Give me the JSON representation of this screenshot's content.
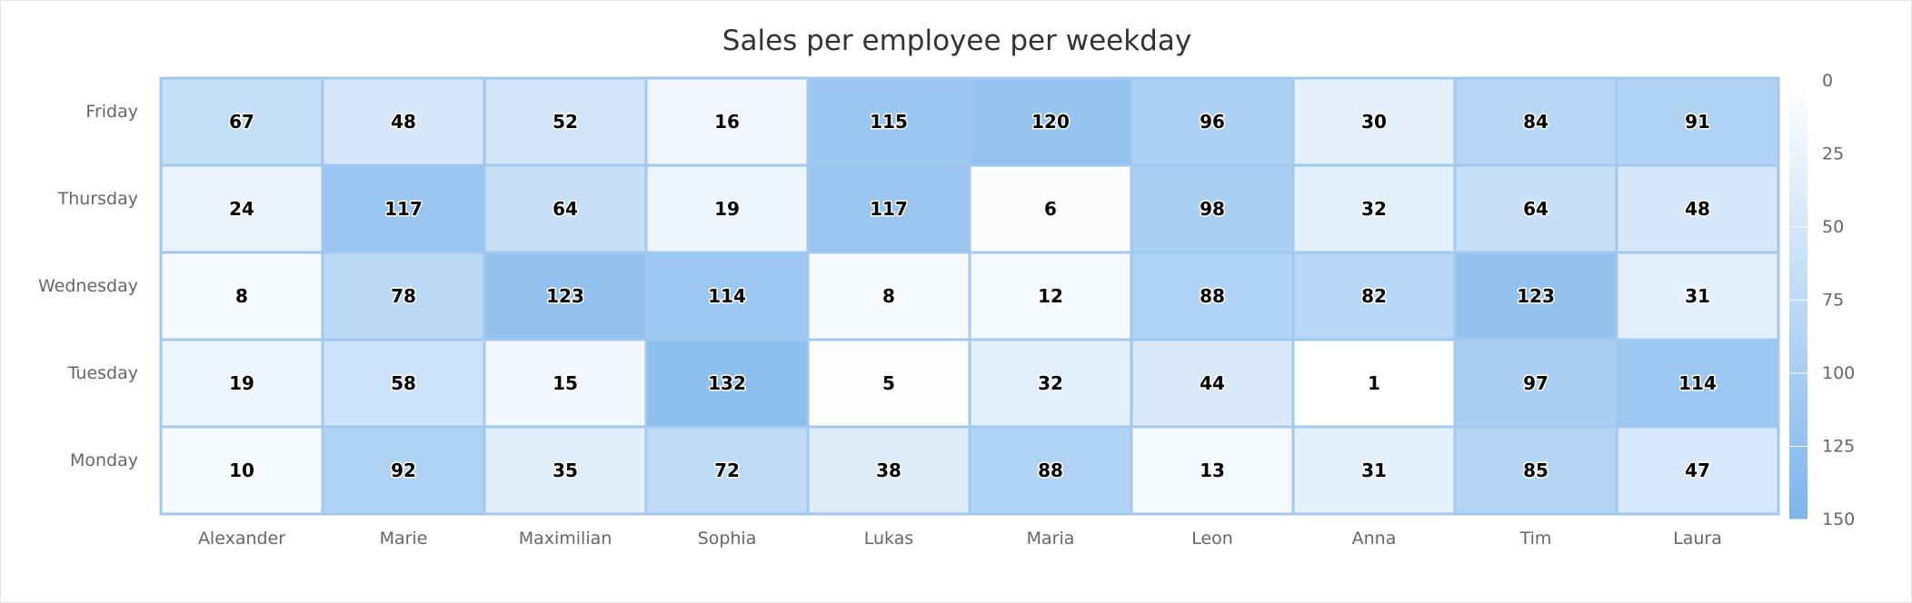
{
  "chart_data": {
    "type": "heatmap",
    "title": "Sales per employee per weekday",
    "x_categories": [
      "Alexander",
      "Marie",
      "Maximilian",
      "Sophia",
      "Lukas",
      "Maria",
      "Leon",
      "Anna",
      "Tim",
      "Laura"
    ],
    "y_categories": [
      "Monday",
      "Tuesday",
      "Wednesday",
      "Thursday",
      "Friday"
    ],
    "values": [
      [
        10,
        19,
        8,
        24,
        67
      ],
      [
        92,
        58,
        78,
        117,
        48
      ],
      [
        35,
        15,
        123,
        64,
        52
      ],
      [
        72,
        132,
        114,
        19,
        16
      ],
      [
        38,
        5,
        8,
        117,
        115
      ],
      [
        88,
        32,
        12,
        6,
        120
      ],
      [
        13,
        44,
        88,
        98,
        96
      ],
      [
        31,
        1,
        82,
        32,
        30
      ],
      [
        85,
        97,
        123,
        64,
        84
      ],
      [
        47,
        114,
        31,
        48,
        91
      ]
    ],
    "color_axis": {
      "min": 0,
      "max": 150,
      "min_color": "#ffffff",
      "max_color": "#7cb5ec",
      "ticks": [
        0,
        25,
        50,
        75,
        100,
        125,
        150
      ],
      "placement": "right"
    },
    "cell_border_color": "#a3c8ef"
  }
}
